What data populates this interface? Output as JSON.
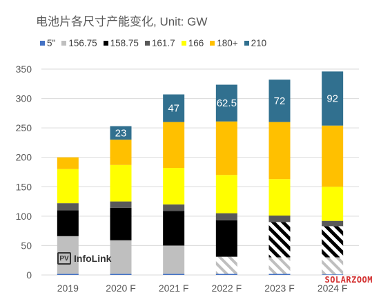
{
  "chart_data": {
    "type": "bar",
    "stacked": true,
    "title": "电池片各尺寸产能变化, Unit: GW",
    "categories": [
      "2019",
      "2020 F",
      "2021 F",
      "2022 F",
      "2023 F",
      "2024 F"
    ],
    "ylim": [
      0,
      350
    ],
    "yticks": [
      0,
      50,
      100,
      150,
      200,
      250,
      300,
      350
    ],
    "grid": true,
    "legend_position": "top",
    "series": [
      {
        "name": "5\"",
        "color": "#4472c4",
        "values": [
          2,
          2,
          2,
          2,
          2,
          1
        ]
      },
      {
        "name": "156.75",
        "color": "#bfbfbf",
        "values": [
          64,
          57,
          48,
          29,
          28,
          29
        ]
      },
      {
        "name": "158.75",
        "color": "#000000",
        "values": [
          44,
          55,
          59,
          62,
          60,
          53
        ]
      },
      {
        "name": "161.7",
        "color": "#595959",
        "values": [
          12,
          11,
          11,
          12,
          11,
          9
        ]
      },
      {
        "name": "166",
        "color": "#ffff00",
        "values": [
          58,
          62,
          62,
          65,
          62,
          58
        ]
      },
      {
        "name": "180+",
        "color": "#ffc000",
        "values": [
          20,
          43,
          78,
          91,
          97,
          104
        ]
      },
      {
        "name": "210",
        "color": "#31708f",
        "values": [
          0,
          23,
          47,
          62.5,
          72,
          92
        ]
      }
    ],
    "hatched": [
      {
        "series": "156.75",
        "categories": [
          "2022 F",
          "2023 F",
          "2024 F"
        ]
      },
      {
        "series": "158.75",
        "categories": [
          "2023 F",
          "2024 F"
        ]
      }
    ],
    "data_labels": {
      "series": "210",
      "values": [
        "",
        "23",
        "47",
        "62.5",
        "72",
        "92"
      ]
    }
  },
  "logo": {
    "mark": "PV",
    "text": "InfoLink"
  },
  "watermark": "SOLARZOOM"
}
